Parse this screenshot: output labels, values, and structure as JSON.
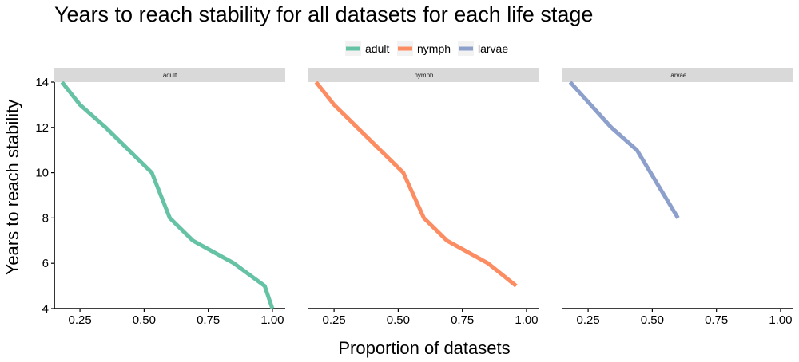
{
  "chart_data": {
    "type": "line",
    "title": "Years to reach stability for all datasets for each life stage",
    "xlabel": "Proportion of datasets",
    "ylabel": "Years to reach stability",
    "xlim": [
      0.15,
      1.05
    ],
    "ylim": [
      4,
      14
    ],
    "x_ticks": [
      "0.25",
      "0.50",
      "0.75",
      "1.00"
    ],
    "y_ticks": [
      "4",
      "6",
      "8",
      "10",
      "12",
      "14"
    ],
    "grid": false,
    "legend_position": "top",
    "facets": [
      {
        "name": "adult",
        "color": "#66c2a5",
        "points": [
          [
            0.18,
            14
          ],
          [
            0.25,
            13
          ],
          [
            0.35,
            12
          ],
          [
            0.44,
            11
          ],
          [
            0.53,
            10
          ],
          [
            0.6,
            8
          ],
          [
            0.69,
            7
          ],
          [
            0.77,
            6.5
          ],
          [
            0.85,
            6
          ],
          [
            0.97,
            5
          ],
          [
            1.0,
            4
          ]
        ]
      },
      {
        "name": "nymph",
        "color": "#fc8d62",
        "points": [
          [
            0.18,
            14
          ],
          [
            0.25,
            13
          ],
          [
            0.34,
            12
          ],
          [
            0.43,
            11
          ],
          [
            0.52,
            10
          ],
          [
            0.6,
            8
          ],
          [
            0.69,
            7
          ],
          [
            0.77,
            6.5
          ],
          [
            0.85,
            6
          ],
          [
            0.96,
            5
          ]
        ]
      },
      {
        "name": "larvae",
        "color": "#8da0cb",
        "points": [
          [
            0.18,
            14
          ],
          [
            0.26,
            13
          ],
          [
            0.34,
            12
          ],
          [
            0.44,
            11
          ],
          [
            0.52,
            9.5
          ],
          [
            0.6,
            8
          ]
        ]
      }
    ]
  }
}
